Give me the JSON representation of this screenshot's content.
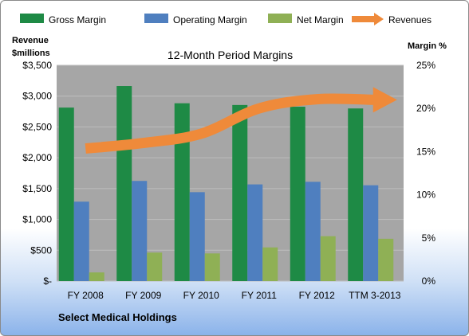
{
  "chart_data": {
    "type": "bar",
    "title": "12-Month Period Margins",
    "subtitle": "Select Medical Holdings",
    "categories": [
      "FY 2008",
      "FY 2009",
      "FY 2010",
      "FY 2011",
      "FY 2012",
      "TTM 3-2013"
    ],
    "left_axis": {
      "label_line1": "Revenue",
      "label_line2": "$millions",
      "ylim": [
        0,
        3500
      ],
      "tick_values": [
        0,
        500,
        1000,
        1500,
        2000,
        2500,
        3000,
        3500
      ],
      "tick_labels": [
        "$-",
        "$500",
        "$1,000",
        "$1,500",
        "$2,000",
        "$2,500",
        "$3,000",
        "$3,500"
      ]
    },
    "right_axis": {
      "label": "Margin %",
      "ylim": [
        0,
        25
      ],
      "tick_values": [
        0,
        5,
        10,
        15,
        20,
        25
      ],
      "tick_labels": [
        "0%",
        "5%",
        "10%",
        "15%",
        "20%",
        "25%"
      ]
    },
    "series": [
      {
        "name": "Gross Margin",
        "kind": "bar",
        "axis": "right",
        "color": "#1e8a45",
        "values": [
          20.1,
          22.6,
          20.6,
          20.4,
          20.2,
          20.0
        ]
      },
      {
        "name": "Operating Margin",
        "kind": "bar",
        "axis": "right",
        "color": "#4f7fbf",
        "values": [
          9.2,
          11.6,
          10.3,
          11.2,
          11.5,
          11.1
        ]
      },
      {
        "name": "Net Margin",
        "kind": "bar",
        "axis": "right",
        "color": "#8fb055",
        "values": [
          1.0,
          3.3,
          3.2,
          3.9,
          5.2,
          4.9
        ]
      },
      {
        "name": "Revenues",
        "kind": "line-arrow",
        "axis": "left",
        "color": "#ef8a3a",
        "values": [
          2150,
          2240,
          2390,
          2800,
          2950,
          2940
        ]
      }
    ],
    "legend_position": "top",
    "plot_background": "#a6a6a6",
    "grid": true
  }
}
